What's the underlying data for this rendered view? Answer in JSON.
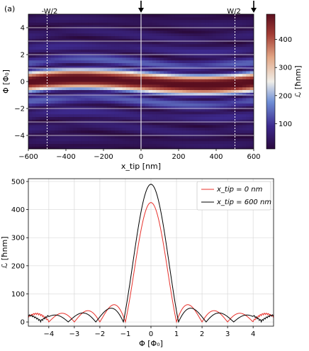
{
  "chart_data": [
    {
      "type": "heatmap",
      "panel_label": "(a)",
      "xlabel": "x_tip  [nm]",
      "ylabel": "Φ [Φ₀]",
      "colorbar_label": "ℒ [ħnm]",
      "xlim": [
        -600,
        600
      ],
      "ylim": [
        -5,
        5
      ],
      "xticks": [
        "−600",
        "−400",
        "−200",
        "0",
        "200",
        "400",
        "600"
      ],
      "yticks": [
        "−4",
        "−2",
        "0",
        "2",
        "4"
      ],
      "colorbar_range": [
        10,
        490
      ],
      "colorbar_ticks": [
        "100",
        "200",
        "300",
        "400"
      ],
      "colorscale": [
        "#2b0a3d",
        "#3d2a8e",
        "#6f8fd6",
        "#f0eee8",
        "#e2a685",
        "#a33d35",
        "#5b0f1f"
      ],
      "dashed_lines_x": [
        -500,
        500
      ],
      "dashed_labels": [
        "-W/2",
        "W/2"
      ],
      "solid_line_x": 0,
      "arrows_x": [
        0,
        600
      ],
      "horizontal_lines_y": [
        -4,
        -3,
        -2,
        -1,
        1,
        2,
        3,
        4
      ],
      "central_peak_value": 490
    },
    {
      "type": "line",
      "xlabel": "Φ [Φ₀]",
      "ylabel": "ℒ [ħnm]",
      "xlim": [
        -4.8,
        4.8
      ],
      "ylim": [
        -15,
        510
      ],
      "xticks": [
        "−4",
        "−3",
        "−2",
        "−1",
        "0",
        "1",
        "2",
        "3",
        "4"
      ],
      "yticks": [
        "0",
        "100",
        "200",
        "300",
        "400",
        "500"
      ],
      "grid": true,
      "legend_position": "top-right",
      "series": [
        {
          "name": "x_tip = 0 nm",
          "color": "#e8312b"
        },
        {
          "name": "x_tip = 600 nm",
          "color": "#000000"
        }
      ],
      "red_peak_value": 425,
      "black_peak_value": 490
    }
  ]
}
